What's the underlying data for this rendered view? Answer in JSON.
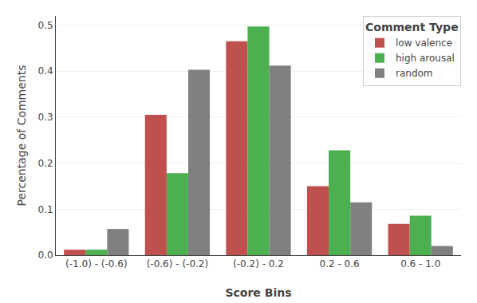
{
  "chart_data": {
    "type": "bar",
    "title": "Comment Type",
    "xlabel": "Score Bins",
    "ylabel": "Percentage of Comments",
    "categories": [
      "(-1.0) - (-0.6)",
      "(-0.6) - (-0.2)",
      "(-0.2) - 0.2",
      "0.2 - 0.6",
      "0.6 - 1.0"
    ],
    "series": [
      {
        "name": "low valence",
        "color": "#c0504d",
        "values": [
          0.012,
          0.305,
          0.465,
          0.15,
          0.068
        ]
      },
      {
        "name": "high arousal",
        "color": "#4caf50",
        "values": [
          0.012,
          0.178,
          0.497,
          0.228,
          0.086
        ]
      },
      {
        "name": "random",
        "color": "#808080",
        "values": [
          0.057,
          0.403,
          0.412,
          0.115,
          0.02
        ]
      }
    ],
    "ylim": [
      0,
      0.52
    ],
    "yticks": [
      {
        "value": 0,
        "label": "0.0"
      },
      0.1,
      0.2,
      0.3,
      0.4,
      0.5
    ],
    "grid": true,
    "legend": "upper right"
  }
}
